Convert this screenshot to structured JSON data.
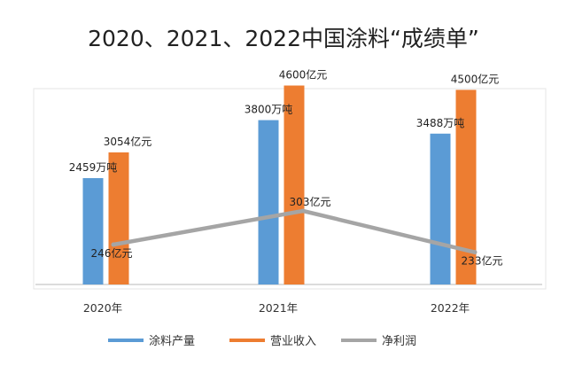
{
  "chart_data": {
    "type": "bar",
    "title": "2020、2021、2022中国涂料“成绩单”",
    "categories": [
      "2020年",
      "2021年",
      "2022年"
    ],
    "series": [
      {
        "name": "涂料产量",
        "kind": "bar",
        "color": "#5b9bd5",
        "values": [
          2459,
          3800,
          3488
        ],
        "labels": [
          "2459万吨",
          "3800万吨",
          "3488万吨"
        ]
      },
      {
        "name": "营业收入",
        "kind": "bar",
        "color": "#ed7d31",
        "values": [
          3054,
          4600,
          4500
        ],
        "labels": [
          "3054亿元",
          "4600亿元",
          "4500亿元"
        ]
      },
      {
        "name": "净利润",
        "kind": "line",
        "color": "#a5a5a5",
        "values": [
          246,
          303,
          233
        ],
        "labels": [
          "246亿元",
          "303亿元",
          "233亿元"
        ]
      }
    ],
    "legend_position": "bottom",
    "gridlines": false
  }
}
